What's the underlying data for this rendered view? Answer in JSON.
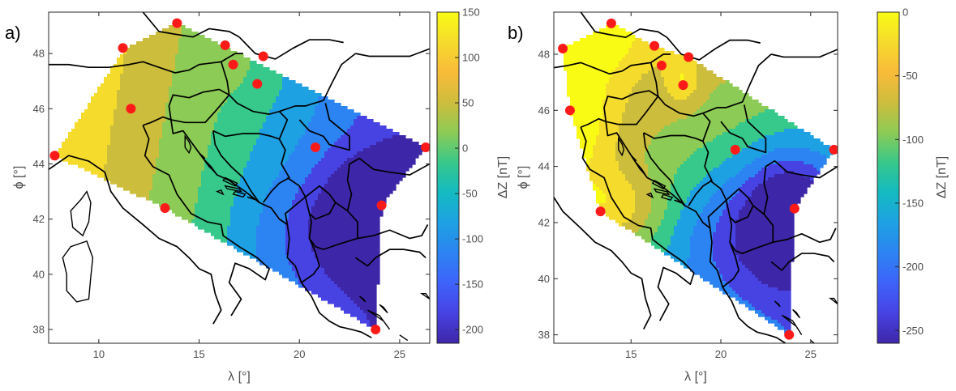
{
  "panels": [
    {
      "label": "a)",
      "xlabel": "λ [°]",
      "ylabel": "ϕ [°]",
      "xlim": [
        7.5,
        26.5
      ],
      "ylim": [
        37.5,
        49.5
      ],
      "xticks": [
        10,
        15,
        20,
        25
      ],
      "yticks": [
        38,
        40,
        42,
        44,
        46,
        48
      ],
      "colorbar": {
        "label": "ΔZ [nT]",
        "min": -215,
        "max": 150,
        "ticks": [
          150,
          100,
          50,
          0,
          -50,
          -100,
          -150,
          -200
        ]
      },
      "hull": [
        [
          7.8,
          44.3
        ],
        [
          11.3,
          48.2
        ],
        [
          13.9,
          49.1
        ],
        [
          26.3,
          44.6
        ],
        [
          24.1,
          42.5
        ],
        [
          23.8,
          38.0
        ],
        [
          13.3,
          42.4
        ]
      ],
      "stations": [
        [
          7.8,
          44.3
        ],
        [
          11.2,
          48.2
        ],
        [
          13.9,
          49.1
        ],
        [
          16.3,
          48.3
        ],
        [
          18.2,
          47.9
        ],
        [
          16.7,
          47.6
        ],
        [
          17.9,
          46.9
        ],
        [
          11.6,
          46.0
        ],
        [
          20.8,
          44.6
        ],
        [
          26.3,
          44.6
        ],
        [
          13.3,
          42.4
        ],
        [
          24.1,
          42.5
        ],
        [
          23.8,
          38.0
        ]
      ],
      "field": {
        "base": -20,
        "plane": {
          "ref": [
            16,
            44.5
          ],
          "gx": -16,
          "gy": 4
        },
        "bumps": [
          {
            "c": [
              23.5,
              42.0
            ],
            "s": [
              2.6,
              2.2
            ],
            "a": -140
          },
          {
            "c": [
              19.5,
              41.5
            ],
            "s": [
              3.0,
              2.5
            ],
            "a": -40
          },
          {
            "c": [
              17.5,
              47.6
            ],
            "s": [
              2.0,
              1.5
            ],
            "a": 20
          }
        ],
        "clamp": [
          -215,
          150
        ]
      }
    },
    {
      "label": "b)",
      "xlabel": "λ [°]",
      "ylabel": "ϕ [°]",
      "xlim": [
        10.7,
        26.5
      ],
      "ylim": [
        37.7,
        49.5
      ],
      "xticks": [
        15,
        20,
        25
      ],
      "yticks": [
        38,
        40,
        42,
        44,
        46,
        48
      ],
      "colorbar": {
        "label": "ΔZ [nT]",
        "min": -260,
        "max": 0,
        "ticks": [
          0,
          -50,
          -100,
          -150,
          -200,
          -250
        ]
      },
      "hull": [
        [
          11.2,
          48.2
        ],
        [
          13.9,
          49.1
        ],
        [
          16.3,
          48.3
        ],
        [
          18.2,
          47.9
        ],
        [
          26.3,
          44.6
        ],
        [
          24.1,
          42.5
        ],
        [
          23.8,
          38.0
        ],
        [
          13.3,
          42.4
        ],
        [
          11.6,
          46.0
        ]
      ],
      "stations": [
        [
          11.2,
          48.2
        ],
        [
          13.9,
          49.1
        ],
        [
          16.3,
          48.3
        ],
        [
          18.2,
          47.9
        ],
        [
          16.7,
          47.6
        ],
        [
          17.9,
          46.9
        ],
        [
          11.6,
          46.0
        ],
        [
          20.8,
          44.6
        ],
        [
          26.3,
          44.6
        ],
        [
          13.3,
          42.4
        ],
        [
          24.1,
          42.5
        ],
        [
          23.8,
          38.0
        ]
      ],
      "field": {
        "base": -95,
        "plane": {
          "ref": [
            17,
            44.5
          ],
          "gx": -5,
          "gy": 10
        },
        "bumps": [
          {
            "c": [
              23.8,
              42.1
            ],
            "s": [
              2.6,
              2.3
            ],
            "a": -155
          },
          {
            "c": [
              20.0,
              41.6
            ],
            "s": [
              3.0,
              2.6
            ],
            "a": -55
          },
          {
            "c": [
              12.5,
              45.0
            ],
            "s": [
              1.8,
              4.0
            ],
            "a": 45
          },
          {
            "c": [
              14.5,
              42.5
            ],
            "s": [
              2.2,
              1.3
            ],
            "a": 55
          },
          {
            "c": [
              17.9,
              47.1
            ],
            "s": [
              0.9,
              0.9
            ],
            "a": 45
          },
          {
            "c": [
              13.5,
              48.6
            ],
            "s": [
              2.0,
              1.0
            ],
            "a": 30
          }
        ],
        "clamp": [
          -260,
          0
        ]
      }
    }
  ],
  "colormap": [
    "#3e26a8",
    "#4743e3",
    "#3e63fb",
    "#2c83f2",
    "#1ea1e3",
    "#14bac1",
    "#37c88b",
    "#8ccb55",
    "#cdbd3c",
    "#f9bb3a",
    "#f5db2c",
    "#f9fb15"
  ],
  "station_color": "#ff1a1a",
  "outline_color": "#000000"
}
